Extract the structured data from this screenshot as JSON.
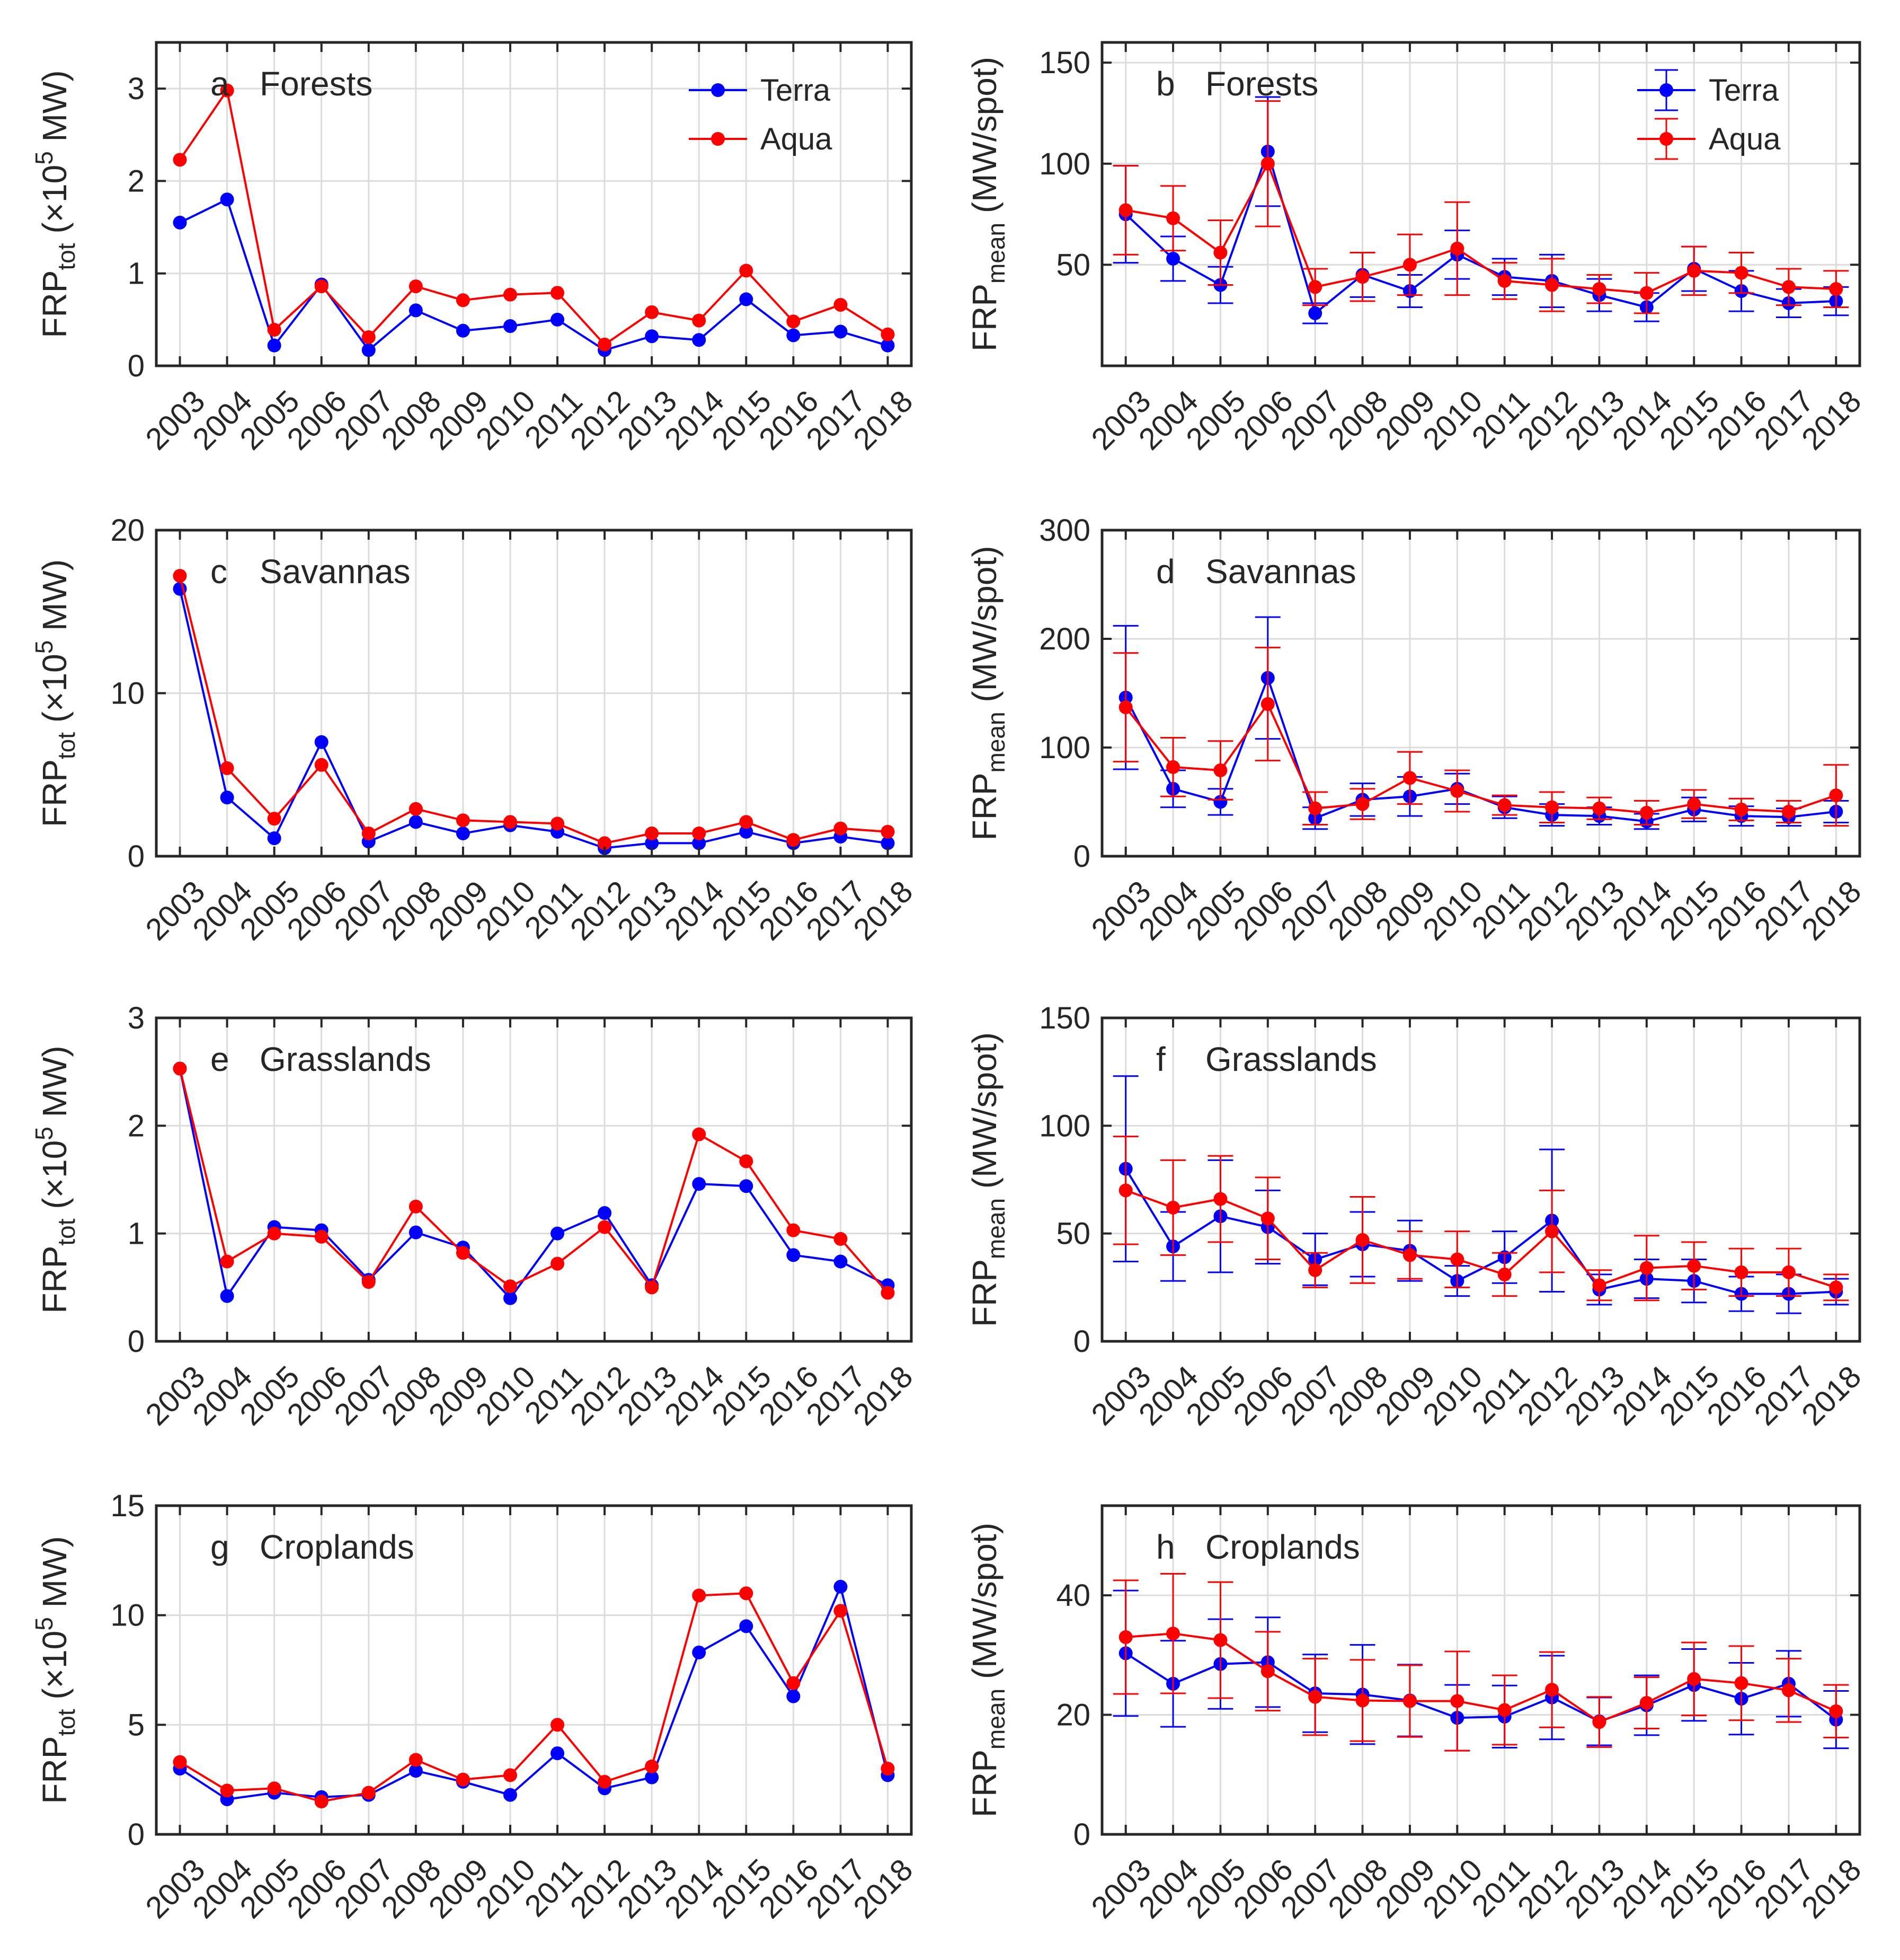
{
  "figure": {
    "colors": {
      "terra": "#0000ff",
      "aqua": "#ff0000",
      "grid": "#dcdcdc",
      "axis": "#262626"
    }
  },
  "chart_data": [
    {
      "id": "a",
      "type": "line",
      "panel_letter": "a",
      "title": "Forests",
      "ylabel": {
        "main": "FRP",
        "sub": "tot",
        "tail_pre": " (×10",
        "sup": "5",
        "tail_post": " MW)"
      },
      "ylim": [
        0,
        3.5
      ],
      "yticks": [
        0,
        1,
        2,
        3
      ],
      "x": [
        2003,
        2004,
        2005,
        2006,
        2007,
        2008,
        2009,
        2010,
        2011,
        2012,
        2013,
        2014,
        2015,
        2016,
        2017,
        2018
      ],
      "legend": {
        "position": "top-right",
        "entries": [
          "Terra",
          "Aqua"
        ],
        "errorbar_style": false
      },
      "series": [
        {
          "name": "Terra",
          "color": "#0000ff",
          "values": [
            1.55,
            1.8,
            0.22,
            0.88,
            0.17,
            0.6,
            0.38,
            0.43,
            0.5,
            0.17,
            0.32,
            0.28,
            0.72,
            0.33,
            0.37,
            0.22
          ]
        },
        {
          "name": "Aqua",
          "color": "#ff0000",
          "values": [
            2.23,
            2.98,
            0.39,
            0.86,
            0.31,
            0.86,
            0.71,
            0.77,
            0.79,
            0.23,
            0.58,
            0.49,
            1.03,
            0.48,
            0.66,
            0.34
          ]
        }
      ]
    },
    {
      "id": "b",
      "type": "line",
      "panel_letter": "b",
      "title": "Forests",
      "ylabel": {
        "main": "FRP",
        "sub": "mean",
        "tail_pre": " (MW/spot)",
        "sup": "",
        "tail_post": ""
      },
      "ylim": [
        0,
        160
      ],
      "yticks": [
        50,
        100,
        150
      ],
      "x": [
        2003,
        2004,
        2005,
        2006,
        2007,
        2008,
        2009,
        2010,
        2011,
        2012,
        2013,
        2014,
        2015,
        2016,
        2017,
        2018
      ],
      "legend": {
        "position": "top-right",
        "entries": [
          "Terra",
          "Aqua"
        ],
        "errorbar_style": true
      },
      "series": [
        {
          "name": "Terra",
          "color": "#0000ff",
          "values": [
            75,
            53,
            40,
            106,
            26,
            45,
            37,
            55,
            44,
            42,
            35,
            29,
            48,
            37,
            31,
            32
          ],
          "errors": [
            24,
            11,
            9,
            27,
            5,
            11,
            8,
            12,
            9,
            13,
            8,
            7,
            11,
            10,
            7,
            7
          ]
        },
        {
          "name": "Aqua",
          "color": "#ff0000",
          "values": [
            77,
            73,
            56,
            100,
            39,
            44,
            50,
            58,
            42,
            40,
            38,
            36,
            47,
            46,
            39,
            38
          ],
          "errors": [
            22,
            16,
            16,
            31,
            9,
            12,
            15,
            23,
            9,
            13,
            7,
            10,
            12,
            10,
            9,
            9
          ]
        }
      ]
    },
    {
      "id": "c",
      "type": "line",
      "panel_letter": "c",
      "title": "Savannas",
      "ylabel": {
        "main": "FRP",
        "sub": "tot",
        "tail_pre": " (×10",
        "sup": "5",
        "tail_post": " MW)"
      },
      "ylim": [
        0,
        20
      ],
      "yticks": [
        0,
        10,
        20
      ],
      "x": [
        2003,
        2004,
        2005,
        2006,
        2007,
        2008,
        2009,
        2010,
        2011,
        2012,
        2013,
        2014,
        2015,
        2016,
        2017,
        2018
      ],
      "legend": null,
      "series": [
        {
          "name": "Terra",
          "color": "#0000ff",
          "values": [
            16.4,
            3.6,
            1.1,
            7.0,
            0.9,
            2.1,
            1.4,
            1.9,
            1.5,
            0.5,
            0.8,
            0.8,
            1.5,
            0.8,
            1.2,
            0.8
          ]
        },
        {
          "name": "Aqua",
          "color": "#ff0000",
          "values": [
            17.2,
            5.4,
            2.3,
            5.6,
            1.4,
            2.9,
            2.2,
            2.1,
            2.0,
            0.8,
            1.4,
            1.4,
            2.1,
            1.0,
            1.7,
            1.5
          ]
        }
      ]
    },
    {
      "id": "d",
      "type": "line",
      "panel_letter": "d",
      "title": "Savannas",
      "ylabel": {
        "main": "FRP",
        "sub": "mean",
        "tail_pre": " (MW/spot)",
        "sup": "",
        "tail_post": ""
      },
      "ylim": [
        0,
        300
      ],
      "yticks": [
        0,
        100,
        200,
        300
      ],
      "x": [
        2003,
        2004,
        2005,
        2006,
        2007,
        2008,
        2009,
        2010,
        2011,
        2012,
        2013,
        2014,
        2015,
        2016,
        2017,
        2018
      ],
      "legend": null,
      "series": [
        {
          "name": "Terra",
          "color": "#0000ff",
          "values": [
            146,
            62,
            50,
            164,
            35,
            52,
            55,
            62,
            45,
            38,
            37,
            32,
            43,
            37,
            36,
            41
          ],
          "errors": [
            66,
            17,
            12,
            56,
            10,
            15,
            18,
            14,
            10,
            10,
            8,
            7,
            11,
            9,
            8,
            10
          ]
        },
        {
          "name": "Aqua",
          "color": "#ff0000",
          "values": [
            137,
            82,
            79,
            140,
            44,
            48,
            72,
            60,
            47,
            45,
            44,
            40,
            48,
            43,
            41,
            56
          ],
          "errors": [
            50,
            27,
            27,
            52,
            15,
            14,
            24,
            19,
            9,
            14,
            10,
            11,
            13,
            10,
            10,
            28
          ]
        }
      ]
    },
    {
      "id": "e",
      "type": "line",
      "panel_letter": "e",
      "title": "Grasslands",
      "ylabel": {
        "main": "FRP",
        "sub": "tot",
        "tail_pre": " (×10",
        "sup": "5",
        "tail_post": " MW)"
      },
      "ylim": [
        0,
        3
      ],
      "yticks": [
        0,
        1,
        2,
        3
      ],
      "x": [
        2003,
        2004,
        2005,
        2006,
        2007,
        2008,
        2009,
        2010,
        2011,
        2012,
        2013,
        2014,
        2015,
        2016,
        2017,
        2018
      ],
      "legend": null,
      "series": [
        {
          "name": "Terra",
          "color": "#0000ff",
          "values": [
            2.53,
            0.42,
            1.06,
            1.03,
            0.57,
            1.01,
            0.87,
            0.4,
            1.0,
            1.19,
            0.52,
            1.46,
            1.44,
            0.8,
            0.74,
            0.52
          ]
        },
        {
          "name": "Aqua",
          "color": "#ff0000",
          "values": [
            2.53,
            0.74,
            1.0,
            0.97,
            0.55,
            1.25,
            0.82,
            0.51,
            0.72,
            1.06,
            0.5,
            1.92,
            1.67,
            1.03,
            0.95,
            0.45
          ]
        }
      ]
    },
    {
      "id": "f",
      "type": "line",
      "panel_letter": "f",
      "title": "Grasslands",
      "ylabel": {
        "main": "FRP",
        "sub": "mean",
        "tail_pre": " (MW/spot)",
        "sup": "",
        "tail_post": ""
      },
      "ylim": [
        0,
        150
      ],
      "yticks": [
        0,
        50,
        100,
        150
      ],
      "x": [
        2003,
        2004,
        2005,
        2006,
        2007,
        2008,
        2009,
        2010,
        2011,
        2012,
        2013,
        2014,
        2015,
        2016,
        2017,
        2018
      ],
      "legend": null,
      "series": [
        {
          "name": "Terra",
          "color": "#0000ff",
          "values": [
            80,
            44,
            58,
            53,
            38,
            45,
            42,
            28,
            39,
            56,
            24,
            29,
            28,
            22,
            22,
            23
          ],
          "errors": [
            43,
            16,
            26,
            17,
            12,
            15,
            14,
            7,
            12,
            33,
            7,
            9,
            10,
            8,
            9,
            6
          ]
        },
        {
          "name": "Aqua",
          "color": "#ff0000",
          "values": [
            70,
            62,
            66,
            57,
            33,
            47,
            40,
            38,
            31,
            51,
            26,
            34,
            35,
            32,
            32,
            25
          ],
          "errors": [
            25,
            22,
            20,
            19,
            8,
            20,
            11,
            13,
            10,
            19,
            7,
            15,
            11,
            11,
            11,
            6
          ]
        }
      ]
    },
    {
      "id": "g",
      "type": "line",
      "panel_letter": "g",
      "title": "Croplands",
      "ylabel": {
        "main": "FRP",
        "sub": "tot",
        "tail_pre": " (×10",
        "sup": "5",
        "tail_post": " MW)"
      },
      "ylim": [
        0,
        15
      ],
      "yticks": [
        0,
        5,
        10,
        15
      ],
      "x": [
        2003,
        2004,
        2005,
        2006,
        2007,
        2008,
        2009,
        2010,
        2011,
        2012,
        2013,
        2014,
        2015,
        2016,
        2017,
        2018
      ],
      "legend": null,
      "series": [
        {
          "name": "Terra",
          "color": "#0000ff",
          "values": [
            3.0,
            1.6,
            1.9,
            1.7,
            1.8,
            2.9,
            2.4,
            1.8,
            3.7,
            2.1,
            2.6,
            8.3,
            9.5,
            6.3,
            11.3,
            2.7
          ]
        },
        {
          "name": "Aqua",
          "color": "#ff0000",
          "values": [
            3.3,
            2.0,
            2.1,
            1.5,
            1.9,
            3.4,
            2.5,
            2.7,
            5.0,
            2.4,
            3.1,
            10.9,
            11.0,
            6.9,
            10.2,
            3.0
          ]
        }
      ]
    },
    {
      "id": "h",
      "type": "line",
      "panel_letter": "h",
      "title": "Croplands",
      "ylabel": {
        "main": "FRP",
        "sub": "mean",
        "tail_pre": " (MW/spot)",
        "sup": "",
        "tail_post": ""
      },
      "ylim": [
        0,
        55
      ],
      "yticks": [
        0,
        20,
        40
      ],
      "x": [
        2003,
        2004,
        2005,
        2006,
        2007,
        2008,
        2009,
        2010,
        2011,
        2012,
        2013,
        2014,
        2015,
        2016,
        2017,
        2018
      ],
      "legend": null,
      "series": [
        {
          "name": "Terra",
          "color": "#0000ff",
          "values": [
            30.3,
            25.2,
            28.5,
            28.8,
            23.6,
            23.4,
            22.4,
            19.5,
            19.7,
            22.9,
            18.9,
            21.6,
            25.0,
            22.7,
            25.2,
            19.2
          ],
          "errors": [
            10.5,
            7.2,
            7.5,
            7.5,
            6.5,
            8.3,
            6.0,
            5.5,
            5.2,
            7.0,
            4.0,
            5.0,
            6.0,
            6.0,
            5.5,
            4.8
          ]
        },
        {
          "name": "Aqua",
          "color": "#ff0000",
          "values": [
            33.0,
            33.6,
            32.5,
            27.3,
            23.0,
            22.4,
            22.3,
            22.3,
            20.8,
            24.2,
            18.8,
            22.0,
            26.0,
            25.3,
            24.1,
            20.6
          ],
          "errors": [
            9.5,
            10.0,
            9.7,
            6.6,
            6.4,
            6.8,
            6.0,
            8.3,
            5.8,
            6.3,
            4.2,
            4.3,
            6.1,
            6.2,
            5.3,
            4.4
          ]
        }
      ]
    }
  ]
}
